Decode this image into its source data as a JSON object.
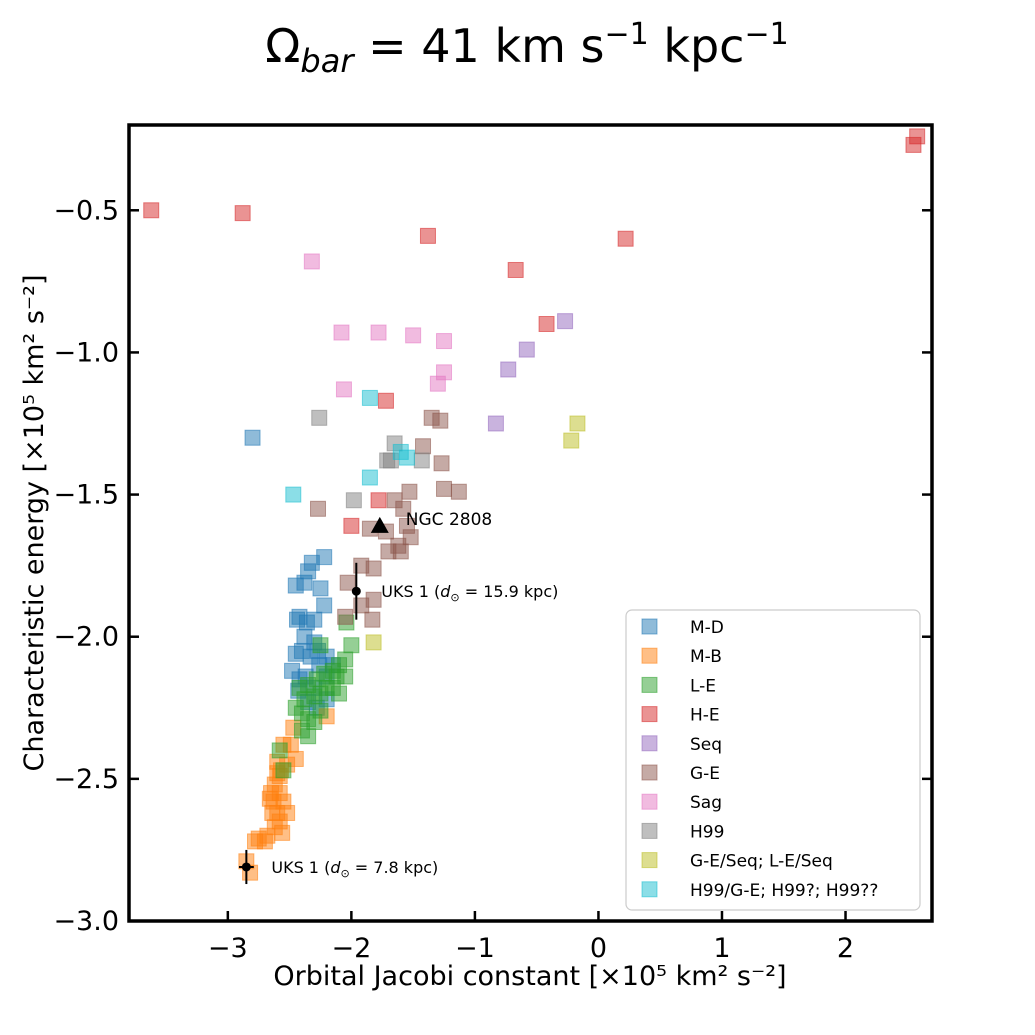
{
  "chart_data": {
    "type": "scatter",
    "title": "Ω_bar = 41 km s⁻¹ kpc⁻¹",
    "title_parts": {
      "omega": "Ω",
      "sub": "bar",
      "main": " = 41 km s",
      "exp1": "−1",
      "mid": " kpc",
      "exp2": "−1"
    },
    "xlabel": "Orbital Jacobi constant [×10⁵ km² s⁻²]",
    "ylabel": "Characteristic energy [×10⁵ km² s⁻²]",
    "xlim": [
      -3.8,
      2.7
    ],
    "ylim": [
      -3.0,
      -0.2
    ],
    "xticks": [
      -3,
      -2,
      -1,
      0,
      1,
      2
    ],
    "xtick_labels": [
      "−3",
      "−2",
      "−1",
      "0",
      "1",
      "2"
    ],
    "yticks": [
      -3.0,
      -2.5,
      -2.0,
      -1.5,
      -1.0,
      -0.5
    ],
    "ytick_labels": [
      "−3.0",
      "−2.5",
      "−2.0",
      "−1.5",
      "−1.0",
      "−0.5"
    ],
    "grid": false,
    "legend_position": "bottom-right",
    "series": [
      {
        "name": "M-D",
        "color": "#1f77b4",
        "points": [
          [
            -2.8,
            -1.3
          ],
          [
            -2.45,
            -1.82
          ],
          [
            -2.38,
            -1.81
          ],
          [
            -2.35,
            -1.77
          ],
          [
            -2.32,
            -1.74
          ],
          [
            -2.22,
            -1.72
          ],
          [
            -2.25,
            -1.83
          ],
          [
            -2.22,
            -1.89
          ],
          [
            -2.42,
            -1.93
          ],
          [
            -2.36,
            -1.95
          ],
          [
            -2.3,
            -1.94
          ],
          [
            -2.45,
            -2.06
          ],
          [
            -2.4,
            -2.05
          ],
          [
            -2.33,
            -2.07
          ],
          [
            -2.27,
            -2.05
          ],
          [
            -2.2,
            -2.07
          ],
          [
            -2.48,
            -2.12
          ],
          [
            -2.42,
            -2.15
          ],
          [
            -2.37,
            -2.14
          ],
          [
            -2.3,
            -2.18
          ],
          [
            -2.43,
            -2.19
          ],
          [
            -2.2,
            -2.14
          ],
          [
            -2.15,
            -2.1
          ],
          [
            -2.35,
            -2.23
          ],
          [
            -2.28,
            -2.25
          ],
          [
            -2.26,
            -2.1
          ],
          [
            -2.38,
            -2.0
          ],
          [
            -2.3,
            -2.02
          ],
          [
            -2.44,
            -1.94
          ],
          [
            -2.2,
            -2.22
          ]
        ]
      },
      {
        "name": "M-B",
        "color": "#ff7f0e",
        "points": [
          [
            -2.55,
            -2.38
          ],
          [
            -2.52,
            -2.45
          ],
          [
            -2.57,
            -2.47
          ],
          [
            -2.6,
            -2.48
          ],
          [
            -2.62,
            -2.52
          ],
          [
            -2.65,
            -2.55
          ],
          [
            -2.58,
            -2.55
          ],
          [
            -2.55,
            -2.58
          ],
          [
            -2.63,
            -2.58
          ],
          [
            -2.6,
            -2.62
          ],
          [
            -2.52,
            -2.62
          ],
          [
            -2.58,
            -2.65
          ],
          [
            -2.64,
            -2.62
          ],
          [
            -2.62,
            -2.67
          ],
          [
            -2.56,
            -2.69
          ],
          [
            -2.68,
            -2.7
          ],
          [
            -2.7,
            -2.72
          ],
          [
            -2.75,
            -2.71
          ],
          [
            -2.78,
            -2.72
          ],
          [
            -2.85,
            -2.79
          ],
          [
            -2.82,
            -2.83
          ],
          [
            -2.49,
            -2.38
          ],
          [
            -2.47,
            -2.32
          ],
          [
            -2.45,
            -2.43
          ],
          [
            -2.2,
            -2.28
          ],
          [
            -2.6,
            -2.44
          ],
          [
            -2.58,
            -2.49
          ],
          [
            -2.66,
            -2.57
          ]
        ]
      },
      {
        "name": "L-E",
        "color": "#2ca02c",
        "points": [
          [
            -2.04,
            -1.95
          ],
          [
            -2.0,
            -2.03
          ],
          [
            -2.05,
            -2.08
          ],
          [
            -2.1,
            -2.1
          ],
          [
            -2.15,
            -2.12
          ],
          [
            -2.22,
            -2.13
          ],
          [
            -2.28,
            -2.15
          ],
          [
            -2.35,
            -2.17
          ],
          [
            -2.42,
            -2.18
          ],
          [
            -2.12,
            -2.14
          ],
          [
            -2.05,
            -2.14
          ],
          [
            -2.2,
            -2.18
          ],
          [
            -2.25,
            -2.2
          ],
          [
            -2.3,
            -2.21
          ],
          [
            -2.38,
            -2.22
          ],
          [
            -2.45,
            -2.25
          ],
          [
            -2.4,
            -2.27
          ],
          [
            -2.35,
            -2.29
          ],
          [
            -2.3,
            -2.3
          ],
          [
            -2.25,
            -2.26
          ],
          [
            -2.4,
            -2.33
          ],
          [
            -2.35,
            -2.35
          ],
          [
            -2.58,
            -2.4
          ],
          [
            -2.55,
            -2.47
          ],
          [
            -2.25,
            -2.03
          ],
          [
            -2.15,
            -2.18
          ],
          [
            -2.1,
            -2.2
          ]
        ]
      },
      {
        "name": "H-E",
        "color": "#d62728",
        "points": [
          [
            -3.62,
            -0.5
          ],
          [
            -2.88,
            -0.51
          ],
          [
            -1.38,
            -0.59
          ],
          [
            -0.67,
            -0.71
          ],
          [
            0.22,
            -0.6
          ],
          [
            -0.42,
            -0.9
          ],
          [
            -1.72,
            -1.17
          ],
          [
            -1.78,
            -1.52
          ],
          [
            -2.0,
            -1.61
          ],
          [
            2.55,
            -0.27
          ],
          [
            2.58,
            -0.24
          ]
        ]
      },
      {
        "name": "Seq",
        "color": "#9467bd",
        "points": [
          [
            -0.27,
            -0.89
          ],
          [
            -0.58,
            -0.99
          ],
          [
            -0.73,
            -1.06
          ],
          [
            -0.83,
            -1.25
          ]
        ]
      },
      {
        "name": "G-E",
        "color": "#8c564b",
        "points": [
          [
            -1.35,
            -1.23
          ],
          [
            -1.28,
            -1.24
          ],
          [
            -1.42,
            -1.33
          ],
          [
            -1.27,
            -1.39
          ],
          [
            -1.13,
            -1.49
          ],
          [
            -1.25,
            -1.48
          ],
          [
            -1.53,
            -1.49
          ],
          [
            -1.58,
            -1.55
          ],
          [
            -1.65,
            -1.52
          ],
          [
            -1.55,
            -1.61
          ],
          [
            -1.52,
            -1.65
          ],
          [
            -1.6,
            -1.7
          ],
          [
            -1.7,
            -1.7
          ],
          [
            -1.82,
            -1.76
          ],
          [
            -1.92,
            -1.75
          ],
          [
            -1.82,
            -1.87
          ],
          [
            -1.92,
            -1.89
          ],
          [
            -2.05,
            -1.93
          ],
          [
            -2.27,
            -1.55
          ],
          [
            -2.03,
            -1.81
          ],
          [
            -1.83,
            -1.94
          ],
          [
            -1.62,
            -1.68
          ],
          [
            -1.72,
            -1.63
          ],
          [
            -1.85,
            -1.62
          ]
        ]
      },
      {
        "name": "Sag",
        "color": "#e377c2",
        "points": [
          [
            -2.32,
            -0.68
          ],
          [
            -2.08,
            -0.93
          ],
          [
            -1.78,
            -0.93
          ],
          [
            -1.5,
            -0.94
          ],
          [
            -1.25,
            -0.96
          ],
          [
            -1.25,
            -1.07
          ],
          [
            -1.3,
            -1.11
          ],
          [
            -2.06,
            -1.13
          ]
        ]
      },
      {
        "name": "H99",
        "color": "#7f7f7f",
        "points": [
          [
            -2.26,
            -1.23
          ],
          [
            -1.65,
            -1.32
          ],
          [
            -1.68,
            -1.38
          ],
          [
            -1.43,
            -1.38
          ],
          [
            -1.98,
            -1.52
          ],
          [
            -1.71,
            -1.38
          ]
        ]
      },
      {
        "name": "G-E/Seq; L-E/Seq",
        "color": "#bcbd22",
        "points": [
          [
            -0.17,
            -1.25
          ],
          [
            -0.22,
            -1.31
          ],
          [
            -1.82,
            -2.02
          ]
        ]
      },
      {
        "name": "H99/G-E; H99?; H99??",
        "color": "#17becf",
        "points": [
          [
            -1.85,
            -1.16
          ],
          [
            -1.6,
            -1.35
          ],
          [
            -1.55,
            -1.37
          ],
          [
            -1.85,
            -1.44
          ],
          [
            -2.47,
            -1.5
          ]
        ]
      }
    ],
    "special_points": [
      {
        "label": "NGC 2808",
        "marker": "triangle",
        "x": -1.77,
        "y": -1.61
      },
      {
        "label_prefix": "UKS 1 (",
        "label_var": "d",
        "label_sub": "⊙",
        "label_rest": " = 15.9 kpc)",
        "marker": "circle",
        "x": -1.96,
        "y": -1.84,
        "yerr": 0.1,
        "xerr": 0
      },
      {
        "label_prefix": "UKS 1 (",
        "label_var": "d",
        "label_sub": "⊙",
        "label_rest": " = 7.8 kpc)",
        "marker": "circle",
        "x": -2.85,
        "y": -2.81,
        "yerr": 0.06,
        "xerr": 0.06
      }
    ]
  }
}
